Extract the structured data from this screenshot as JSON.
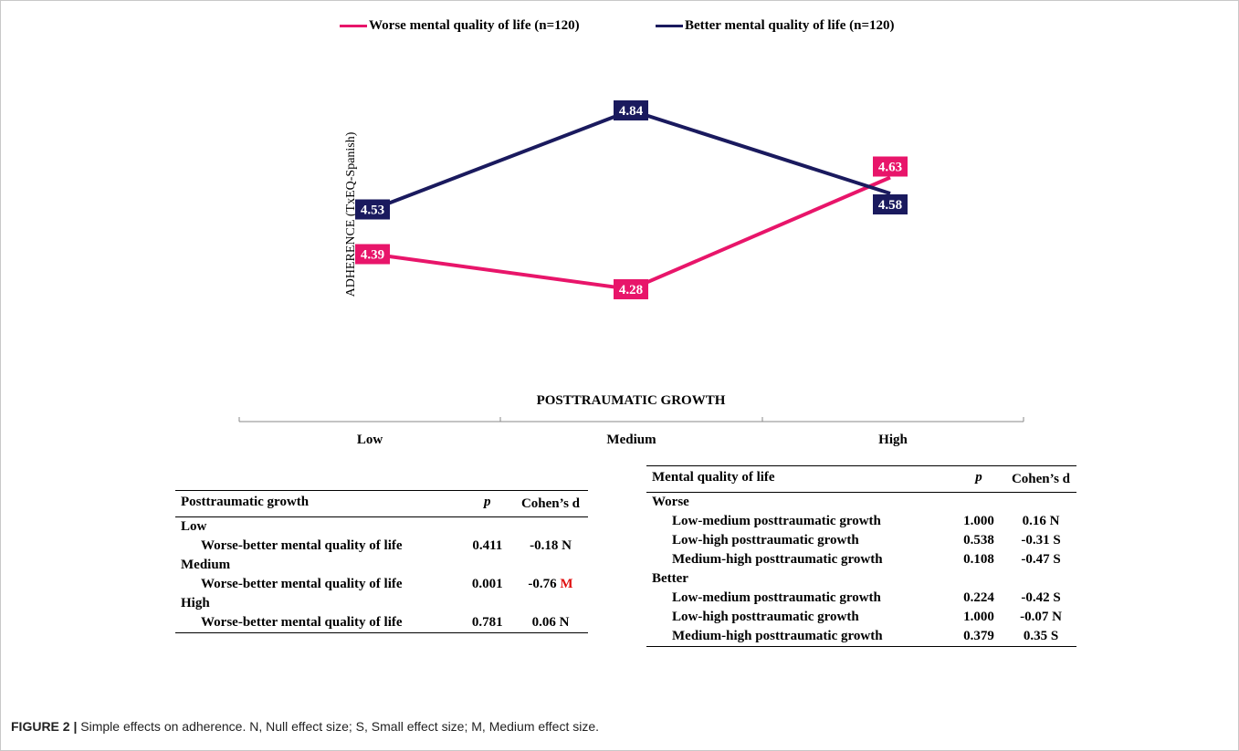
{
  "chart_data": {
    "type": "line",
    "categories": [
      "Low",
      "Medium",
      "High"
    ],
    "series": [
      {
        "name": "Worse mental quality of life (n=120)",
        "values": [
          4.39,
          4.28,
          4.63
        ],
        "color": "#e8156a",
        "labels": [
          "4.39",
          "4.28",
          "4.63"
        ]
      },
      {
        "name": "Better mental quality of life (n=120)",
        "values": [
          4.53,
          4.84,
          4.58
        ],
        "color": "#1a1a5e",
        "labels": [
          "4.53",
          "4.84",
          "4.58"
        ]
      }
    ],
    "ylabel": "ADHERENCE (TxEQ-Spanish)",
    "xlabel": "POSTTRAUMATIC GROWTH",
    "ylim": [
      4.1,
      4.9
    ],
    "legend_position": "top"
  },
  "table_left": {
    "headers": [
      "Posttraumatic growth",
      "p",
      "Cohen’s d"
    ],
    "rows": [
      {
        "label": "Low",
        "indent": false,
        "p": "",
        "d": ""
      },
      {
        "label": "Worse-better mental quality of life",
        "indent": true,
        "p": "0.411",
        "d": "-0.18 N"
      },
      {
        "label": "Medium",
        "indent": false,
        "p": "",
        "d": ""
      },
      {
        "label": "Worse-better mental quality of life",
        "indent": true,
        "p": "0.001",
        "d": "-0.76",
        "d_flag": "M"
      },
      {
        "label": "High",
        "indent": false,
        "p": "",
        "d": ""
      },
      {
        "label": "Worse-better mental quality of life",
        "indent": true,
        "p": "0.781",
        "d": "0.06 N"
      }
    ]
  },
  "table_right": {
    "headers": [
      "Mental quality of life",
      "p",
      "Cohen’s d"
    ],
    "rows": [
      {
        "label": "Worse",
        "indent": false,
        "p": "",
        "d": ""
      },
      {
        "label": "Low-medium posttraumatic growth",
        "indent": true,
        "p": "1.000",
        "d": "0.16 N"
      },
      {
        "label": "Low-high posttraumatic growth",
        "indent": true,
        "p": "0.538",
        "d": "-0.31 S"
      },
      {
        "label": "Medium-high posttraumatic growth",
        "indent": true,
        "p": "0.108",
        "d": "-0.47 S"
      },
      {
        "label": "Better",
        "indent": false,
        "p": "",
        "d": ""
      },
      {
        "label": "Low-medium posttraumatic growth",
        "indent": true,
        "p": "0.224",
        "d": "-0.42 S"
      },
      {
        "label": "Low-high posttraumatic growth",
        "indent": true,
        "p": "1.000",
        "d": "-0.07 N"
      },
      {
        "label": "Medium-high posttraumatic growth",
        "indent": true,
        "p": "0.379",
        "d": "0.35 S"
      }
    ]
  },
  "caption": {
    "label": "FIGURE 2 |",
    "text": " Simple effects on adherence. N, Null effect size; S, Small effect size; M, Medium effect size."
  }
}
